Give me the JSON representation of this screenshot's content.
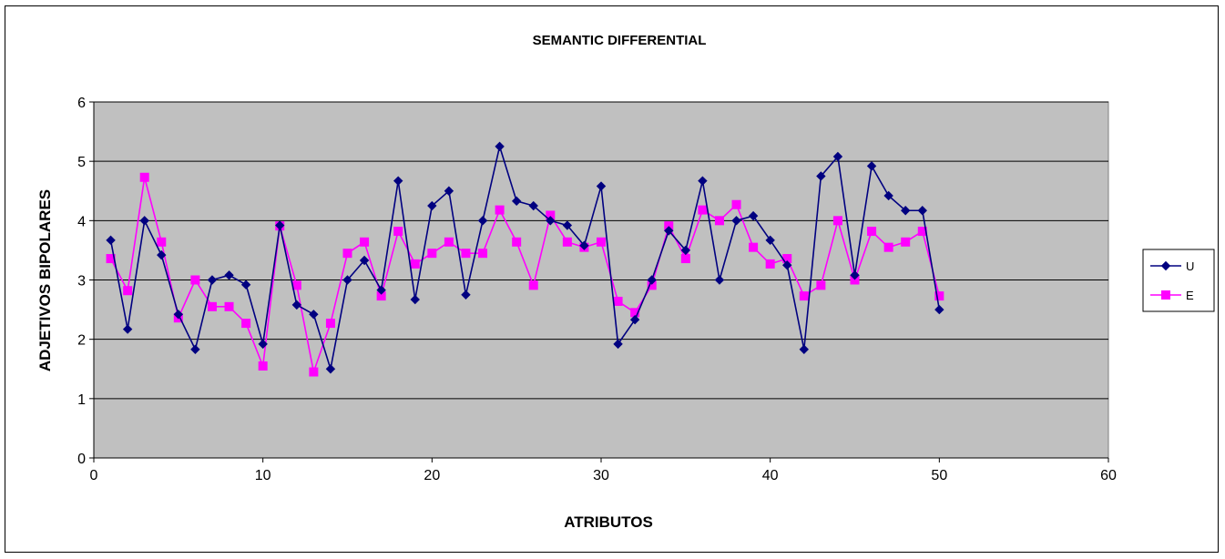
{
  "chart_data": {
    "type": "line",
    "title": "SEMANTIC DIFFERENTIAL",
    "xlabel": "ATRIBUTOS",
    "ylabel": "ADJETIVOS BIPOLARES",
    "xlim": [
      0,
      60
    ],
    "ylim": [
      0,
      6
    ],
    "xticks": [
      0,
      10,
      20,
      30,
      40,
      50,
      60
    ],
    "yticks": [
      0,
      1,
      2,
      3,
      4,
      5,
      6
    ],
    "grid": "horizontal",
    "legend_position": "right",
    "plot_background": "#c0c0c0",
    "x": [
      1,
      2,
      3,
      4,
      5,
      6,
      7,
      8,
      9,
      10,
      11,
      12,
      13,
      14,
      15,
      16,
      17,
      18,
      19,
      20,
      21,
      22,
      23,
      24,
      25,
      26,
      27,
      28,
      29,
      30,
      31,
      32,
      33,
      34,
      35,
      36,
      37,
      38,
      39,
      40,
      41,
      42,
      43,
      44,
      45,
      46,
      47,
      48,
      49,
      50
    ],
    "series": [
      {
        "name": "U",
        "color": "#000080",
        "marker": "diamond",
        "values": [
          3.67,
          2.17,
          4.0,
          3.42,
          2.42,
          1.83,
          3.0,
          3.08,
          2.92,
          1.92,
          3.92,
          2.58,
          2.42,
          1.5,
          3.0,
          3.33,
          2.83,
          4.67,
          2.67,
          4.25,
          4.5,
          2.75,
          4.0,
          5.25,
          4.33,
          4.25,
          4.0,
          3.92,
          3.58,
          4.58,
          1.92,
          2.33,
          3.0,
          3.83,
          3.5,
          4.67,
          3.0,
          4.0,
          4.08,
          3.67,
          3.25,
          1.83,
          4.75,
          5.08,
          3.08,
          4.92,
          4.42,
          4.17,
          4.17,
          2.5
        ]
      },
      {
        "name": "E",
        "color": "#ff00ff",
        "marker": "square",
        "values": [
          3.36,
          2.82,
          4.73,
          3.64,
          2.36,
          3.0,
          2.55,
          2.55,
          2.27,
          1.55,
          3.91,
          2.91,
          1.45,
          2.27,
          3.45,
          3.64,
          2.73,
          3.82,
          3.27,
          3.45,
          3.64,
          3.45,
          3.45,
          4.18,
          3.64,
          2.91,
          4.09,
          3.64,
          3.55,
          3.64,
          2.64,
          2.45,
          2.91,
          3.91,
          3.36,
          4.18,
          4.0,
          4.27,
          3.55,
          3.27,
          3.36,
          2.73,
          2.91,
          4.0,
          3.0,
          3.82,
          3.55,
          3.64,
          3.82,
          2.73
        ]
      }
    ]
  }
}
